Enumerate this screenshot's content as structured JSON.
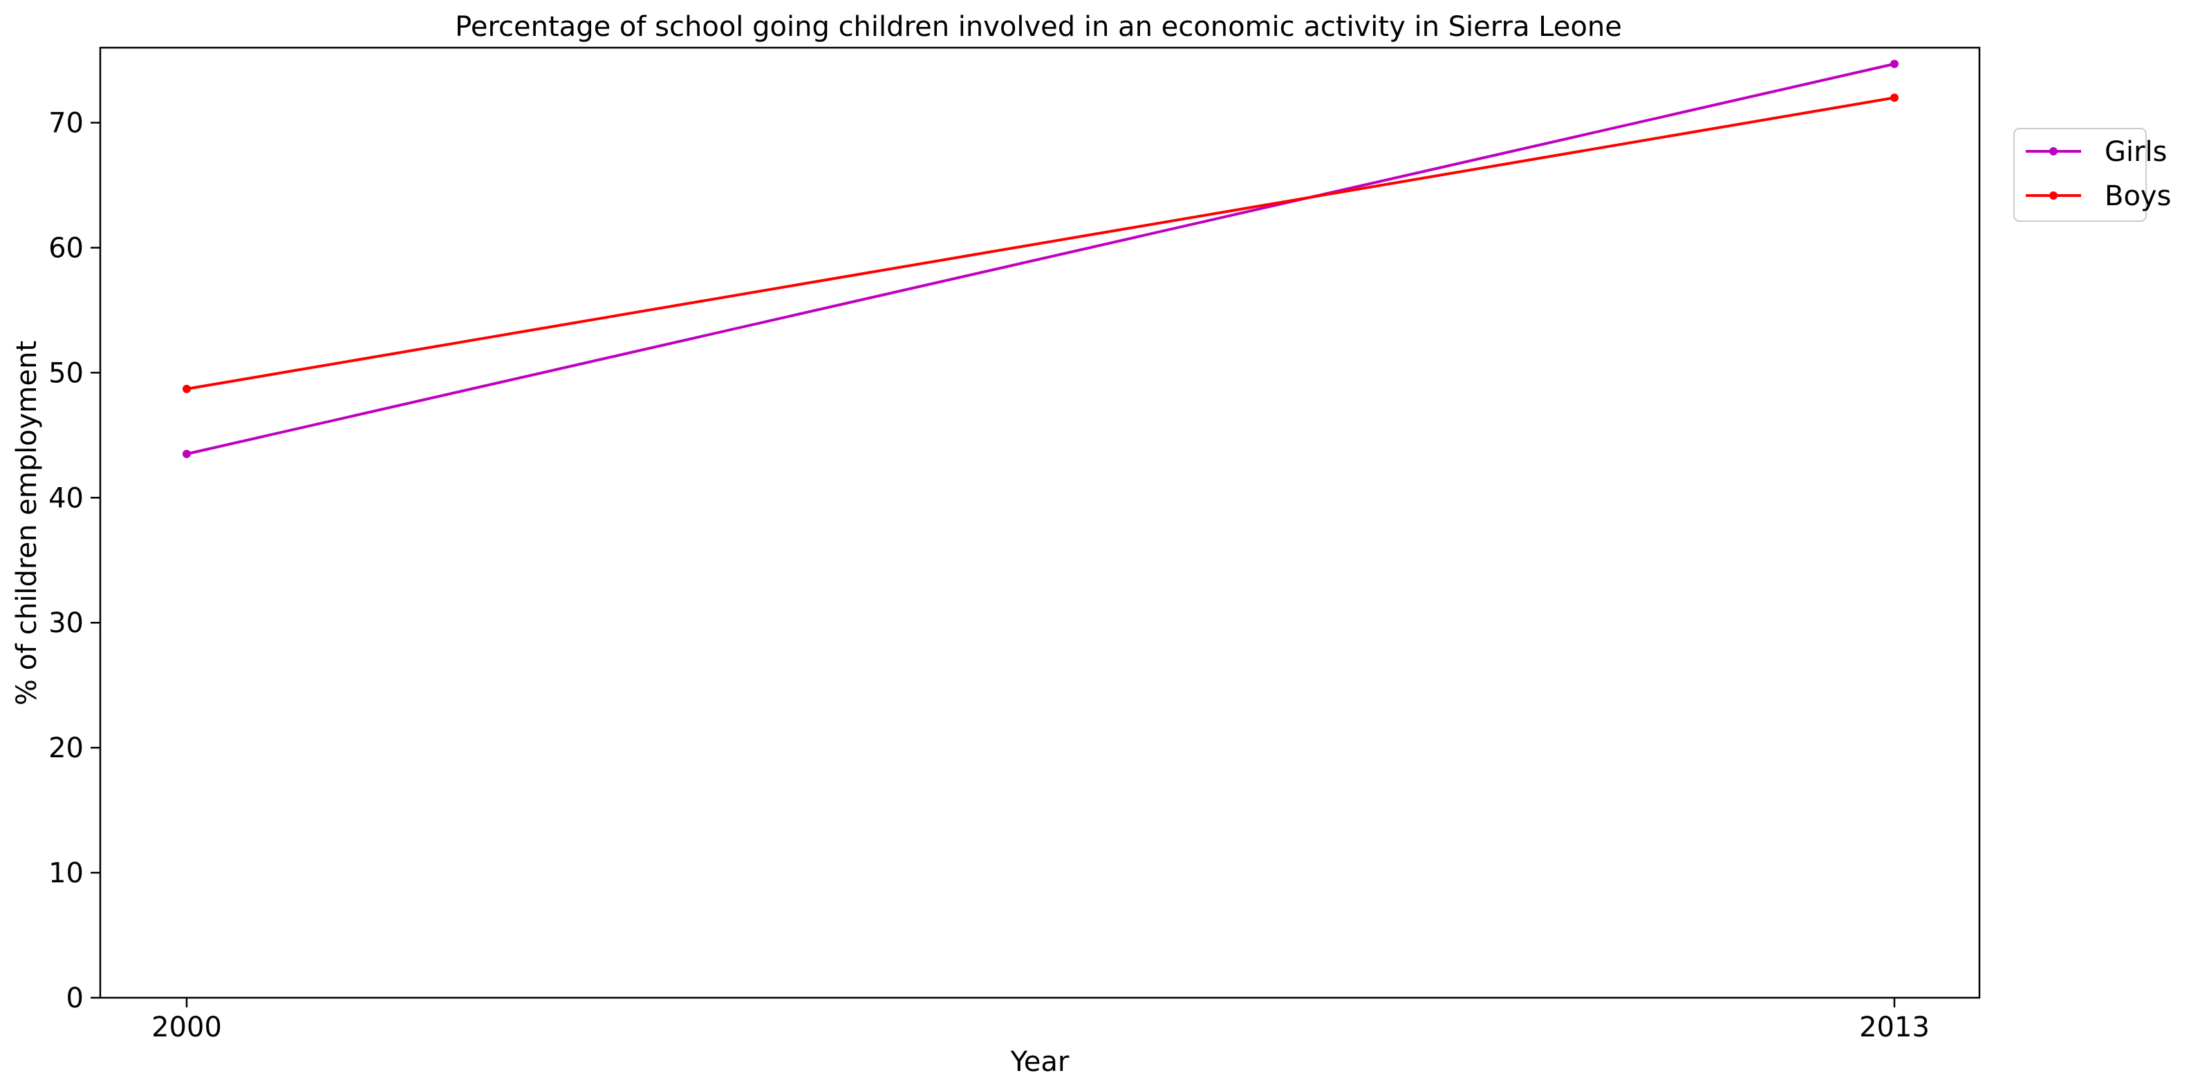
{
  "chart_data": {
    "type": "line",
    "title": "Percentage of school going children involved in an economic activity in Sierra Leone",
    "xlabel": "Year",
    "ylabel": "% of children employment",
    "x": [
      2000,
      2013
    ],
    "x_tick_labels": [
      "2000",
      "2013"
    ],
    "ylim": [
      0,
      76
    ],
    "y_ticks": [
      0,
      10,
      20,
      30,
      40,
      50,
      60,
      70
    ],
    "grid": false,
    "legend_position": "upper-right-outside",
    "series": [
      {
        "name": "Girls",
        "color": "#bf00bf",
        "values": [
          43.5,
          74.7
        ]
      },
      {
        "name": "Boys",
        "color": "#ff0000",
        "values": [
          48.7,
          72.0
        ]
      }
    ]
  }
}
